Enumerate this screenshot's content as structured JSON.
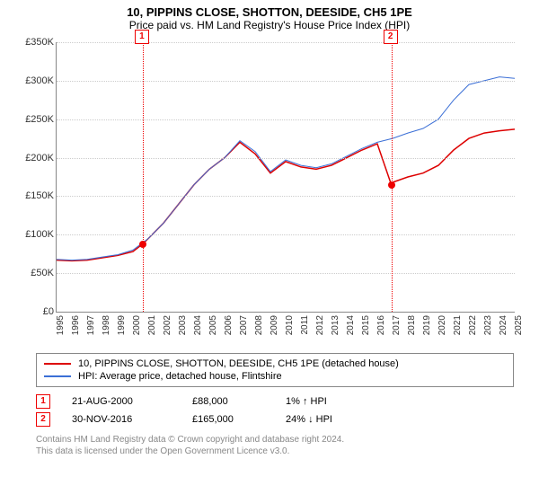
{
  "title": "10, PIPPINS CLOSE, SHOTTON, DEESIDE, CH5 1PE",
  "subtitle": "Price paid vs. HM Land Registry's House Price Index (HPI)",
  "chart": {
    "type": "line",
    "x_domain": [
      1995,
      2025
    ],
    "y_domain": [
      0,
      350000
    ],
    "ytick_step": 50000,
    "yticks": [
      "£0",
      "£50K",
      "£100K",
      "£150K",
      "£200K",
      "£250K",
      "£300K",
      "£350K"
    ],
    "xticks": [
      1995,
      1996,
      1997,
      1998,
      1999,
      2000,
      2001,
      2002,
      2003,
      2004,
      2005,
      2006,
      2007,
      2008,
      2009,
      2010,
      2011,
      2012,
      2013,
      2014,
      2015,
      2016,
      2017,
      2018,
      2019,
      2020,
      2021,
      2022,
      2023,
      2024,
      2025
    ],
    "grid_color": "#cccccc",
    "axis_color": "#888888",
    "background_color": "#ffffff",
    "series": [
      {
        "name": "10, PIPPINS CLOSE, SHOTTON, DEESIDE, CH5 1PE (detached house)",
        "color": "#dd0000",
        "width": 1.5,
        "points": [
          [
            1995,
            67000
          ],
          [
            1996,
            66000
          ],
          [
            1997,
            67000
          ],
          [
            1998,
            70000
          ],
          [
            1999,
            73000
          ],
          [
            2000,
            78000
          ],
          [
            2000.64,
            88000
          ],
          [
            2001,
            95000
          ],
          [
            2002,
            115000
          ],
          [
            2003,
            140000
          ],
          [
            2004,
            165000
          ],
          [
            2005,
            185000
          ],
          [
            2006,
            200000
          ],
          [
            2007,
            220000
          ],
          [
            2008,
            205000
          ],
          [
            2009,
            180000
          ],
          [
            2010,
            195000
          ],
          [
            2011,
            188000
          ],
          [
            2012,
            185000
          ],
          [
            2013,
            190000
          ],
          [
            2014,
            200000
          ],
          [
            2015,
            210000
          ],
          [
            2016,
            218000
          ],
          [
            2016.92,
            165000
          ],
          [
            2017,
            168000
          ],
          [
            2018,
            175000
          ],
          [
            2019,
            180000
          ],
          [
            2020,
            190000
          ],
          [
            2021,
            210000
          ],
          [
            2022,
            225000
          ],
          [
            2023,
            232000
          ],
          [
            2024,
            235000
          ],
          [
            2025,
            237000
          ]
        ]
      },
      {
        "name": "HPI: Average price, detached house, Flintshire",
        "color": "#3b6fd6",
        "width": 1,
        "points": [
          [
            1995,
            68000
          ],
          [
            1996,
            67000
          ],
          [
            1997,
            68000
          ],
          [
            1998,
            71000
          ],
          [
            1999,
            74000
          ],
          [
            2000,
            80000
          ],
          [
            2001,
            95000
          ],
          [
            2002,
            115000
          ],
          [
            2003,
            140000
          ],
          [
            2004,
            165000
          ],
          [
            2005,
            185000
          ],
          [
            2006,
            200000
          ],
          [
            2007,
            222000
          ],
          [
            2008,
            208000
          ],
          [
            2009,
            182000
          ],
          [
            2010,
            197000
          ],
          [
            2011,
            190000
          ],
          [
            2012,
            187000
          ],
          [
            2013,
            192000
          ],
          [
            2014,
            202000
          ],
          [
            2015,
            212000
          ],
          [
            2016,
            220000
          ],
          [
            2017,
            225000
          ],
          [
            2018,
            232000
          ],
          [
            2019,
            238000
          ],
          [
            2020,
            250000
          ],
          [
            2021,
            275000
          ],
          [
            2022,
            295000
          ],
          [
            2023,
            300000
          ],
          [
            2024,
            305000
          ],
          [
            2025,
            303000
          ]
        ]
      }
    ],
    "markers": [
      {
        "label": "1",
        "year": 2000.64,
        "value": 88000
      },
      {
        "label": "2",
        "year": 2016.92,
        "value": 165000
      }
    ]
  },
  "legend": {
    "items": [
      {
        "label": "10, PIPPINS CLOSE, SHOTTON, DEESIDE, CH5 1PE (detached house)",
        "color": "#dd0000"
      },
      {
        "label": "HPI: Average price, detached house, Flintshire",
        "color": "#3b6fd6"
      }
    ]
  },
  "events": [
    {
      "num": "1",
      "date": "21-AUG-2000",
      "price": "£88,000",
      "delta": "1% ↑ HPI"
    },
    {
      "num": "2",
      "date": "30-NOV-2016",
      "price": "£165,000",
      "delta": "24% ↓ HPI"
    }
  ],
  "footer_line1": "Contains HM Land Registry data © Crown copyright and database right 2024.",
  "footer_line2": "This data is licensed under the Open Government Licence v3.0."
}
